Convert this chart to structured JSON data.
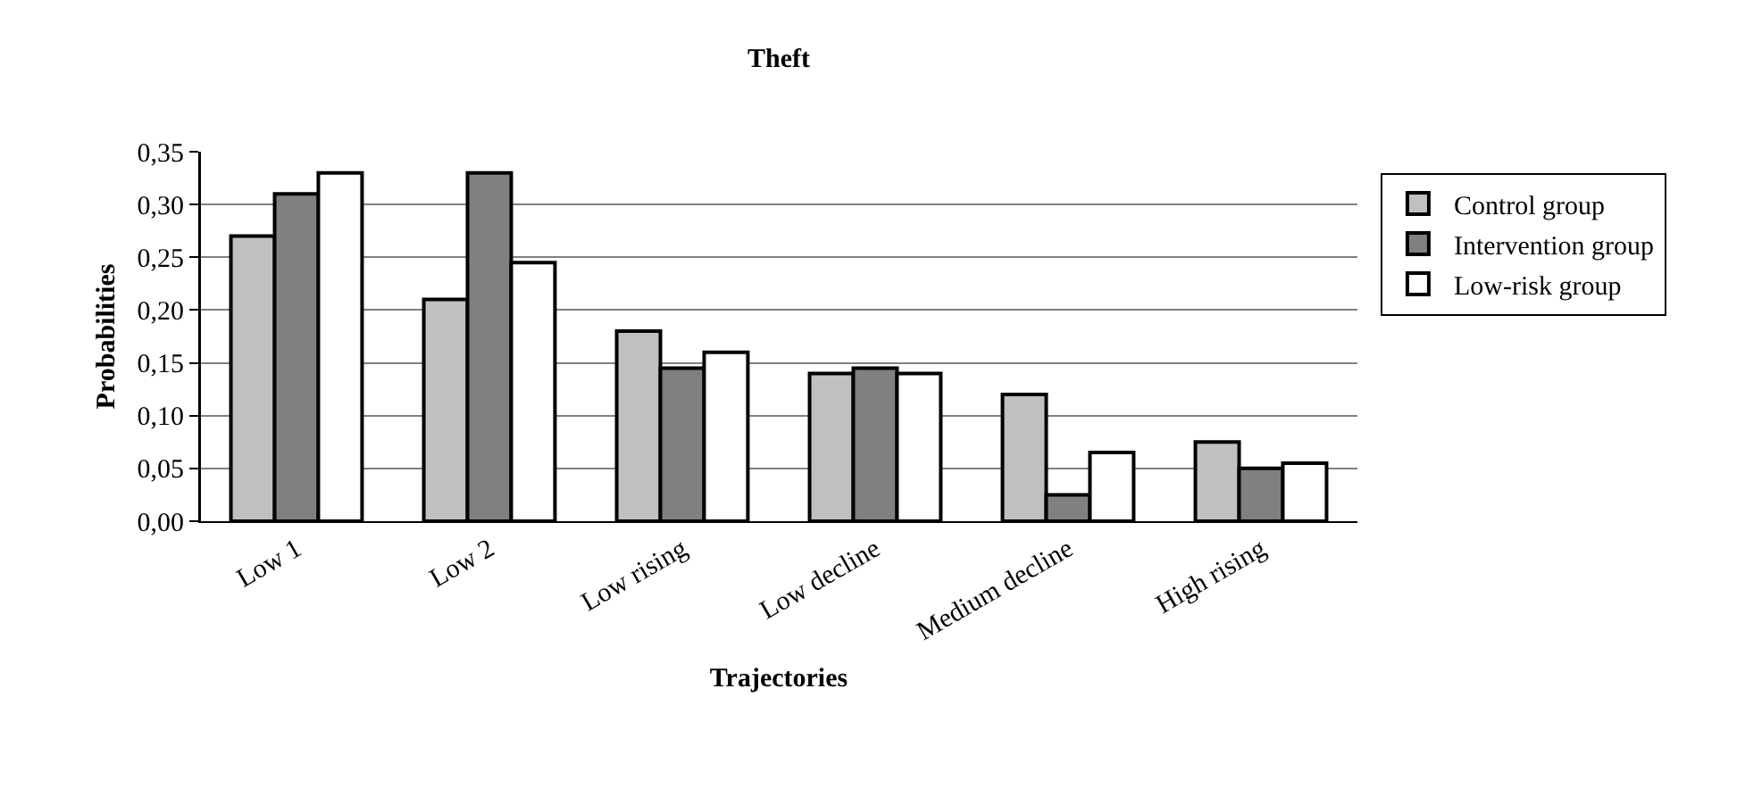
{
  "chart_data": {
    "type": "bar",
    "title": "Theft",
    "xlabel": "Trajectories",
    "ylabel": "Probabilities",
    "categories": [
      "Low 1",
      "Low 2",
      "Low rising",
      "Low decline",
      "Medium decline",
      "High rising"
    ],
    "series": [
      {
        "name": "Control group",
        "color": "#c0c0c0",
        "values": [
          0.27,
          0.21,
          0.18,
          0.14,
          0.12,
          0.075
        ]
      },
      {
        "name": "Intervention group",
        "color": "#808080",
        "values": [
          0.31,
          0.33,
          0.145,
          0.145,
          0.025,
          0.05
        ]
      },
      {
        "name": "Low-risk group",
        "color": "#ffffff",
        "values": [
          0.33,
          0.245,
          0.16,
          0.14,
          0.065,
          0.055
        ]
      }
    ],
    "ylim": [
      0,
      0.35
    ],
    "yticks": [
      {
        "value": 0,
        "label": "0,00"
      },
      {
        "value": 0.05,
        "label": "0,05"
      },
      {
        "value": 0.1,
        "label": "0,10"
      },
      {
        "value": 0.15,
        "label": "0,15"
      },
      {
        "value": 0.2,
        "label": "0,20"
      },
      {
        "value": 0.25,
        "label": "0,25"
      },
      {
        "value": 0.3,
        "label": "0,30"
      },
      {
        "value": 0.35,
        "label": "0,35"
      }
    ],
    "grid": "y",
    "legend": "right"
  }
}
